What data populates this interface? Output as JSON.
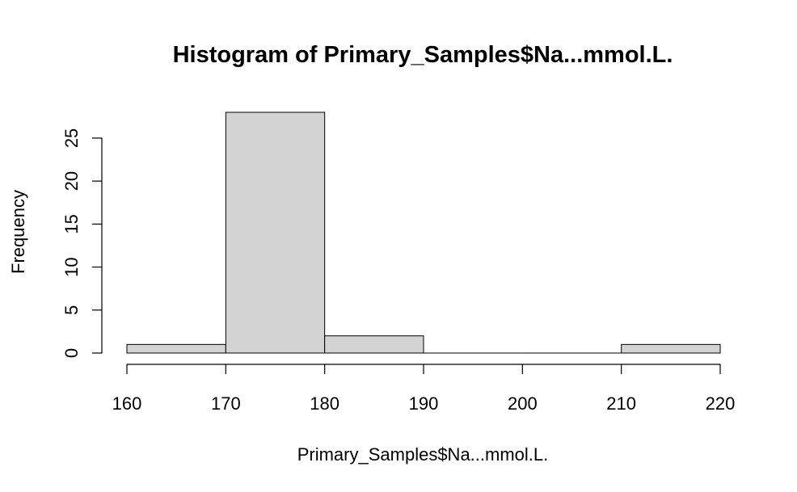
{
  "chart_data": {
    "type": "bar",
    "title": "Histogram of Primary_Samples$Na...mmol.L.",
    "xlabel": "Primary_Samples$Na...mmol.L.",
    "ylabel": "Frequency",
    "bins": [
      {
        "start": 160,
        "end": 170,
        "count": 1
      },
      {
        "start": 170,
        "end": 180,
        "count": 28
      },
      {
        "start": 180,
        "end": 190,
        "count": 2
      },
      {
        "start": 190,
        "end": 200,
        "count": 0
      },
      {
        "start": 200,
        "end": 210,
        "count": 0
      },
      {
        "start": 210,
        "end": 220,
        "count": 1
      }
    ],
    "xlim": [
      160,
      220
    ],
    "ylim": [
      0,
      28
    ],
    "x_ticks": [
      160,
      170,
      180,
      190,
      200,
      210,
      220
    ],
    "y_ticks": [
      0,
      5,
      10,
      15,
      20,
      25
    ],
    "bar_fill": "#d3d3d3",
    "bar_stroke": "#000000",
    "grid": false,
    "legend": "none"
  }
}
